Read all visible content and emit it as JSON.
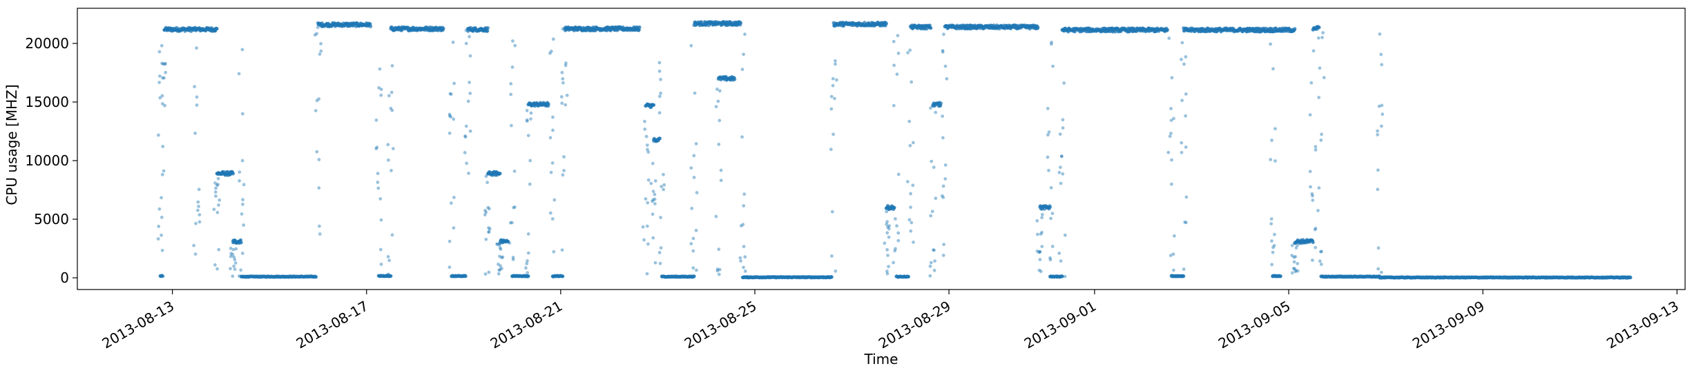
{
  "chart_data": {
    "type": "scatter",
    "title": "",
    "xlabel": "Time",
    "ylabel": "CPU usage [MHZ]",
    "xlim": [
      "2013-08-11T01:00",
      "2013-09-13T04:00"
    ],
    "ylim": [
      -1000,
      23000
    ],
    "xticks": [
      "2013-08-13",
      "2013-08-17",
      "2013-08-21",
      "2013-08-25",
      "2013-08-29",
      "2013-09-01",
      "2013-09-05",
      "2013-09-09",
      "2013-09-13"
    ],
    "yticks": [
      0,
      5000,
      10000,
      15000,
      20000
    ],
    "grid": false,
    "legend": "none",
    "color": "#1f77b4",
    "series": [
      {
        "segments": [
          {
            "start": "2013-08-12T18:00",
            "end": "2013-08-12T19:00",
            "level": 150
          },
          {
            "start": "2013-08-12T20:00",
            "end": "2013-08-13T12:00",
            "level": 21200
          },
          {
            "start": "2013-08-13T12:00",
            "end": "2013-08-13T22:00",
            "level": 21200
          },
          {
            "start": "2013-08-13T22:00",
            "end": "2013-08-14T06:00",
            "level": 8900
          },
          {
            "start": "2013-08-14T06:00",
            "end": "2013-08-14T10:00",
            "level": 3100
          },
          {
            "start": "2013-08-14T10:00",
            "end": "2013-08-15T23:00",
            "level": 100
          },
          {
            "start": "2013-08-16T00:00",
            "end": "2013-08-17T02:00",
            "level": 21600
          },
          {
            "start": "2013-08-17T06:00",
            "end": "2013-08-17T12:00",
            "level": 150
          },
          {
            "start": "2013-08-17T12:00",
            "end": "2013-08-18T14:00",
            "level": 21250
          },
          {
            "start": "2013-08-18T18:00",
            "end": "2013-08-19T01:00",
            "level": 150
          },
          {
            "start": "2013-08-19T02:00",
            "end": "2013-08-19T12:00",
            "level": 21200
          },
          {
            "start": "2013-08-19T12:00",
            "end": "2013-08-19T18:00",
            "level": 8900
          },
          {
            "start": "2013-08-19T18:00",
            "end": "2013-08-19T22:00",
            "level": 3100
          },
          {
            "start": "2013-08-20T00:00",
            "end": "2013-08-20T08:00",
            "level": 150
          },
          {
            "start": "2013-08-20T08:00",
            "end": "2013-08-20T18:00",
            "level": 14800
          },
          {
            "start": "2013-08-20T20:00",
            "end": "2013-08-21T01:00",
            "level": 150
          },
          {
            "start": "2013-08-21T02:00",
            "end": "2013-08-22T15:00",
            "level": 21250
          },
          {
            "start": "2013-08-22T18:00",
            "end": "2013-08-22T22:00",
            "level": 14700
          },
          {
            "start": "2013-08-22T22:00",
            "end": "2013-08-23T01:00",
            "level": 11800
          },
          {
            "start": "2013-08-23T02:00",
            "end": "2013-08-23T18:00",
            "level": 100
          },
          {
            "start": "2013-08-23T18:00",
            "end": "2013-08-24T17:00",
            "level": 21700
          },
          {
            "start": "2013-08-24T06:00",
            "end": "2013-08-24T14:00",
            "level": 17000
          },
          {
            "start": "2013-08-24T18:00",
            "end": "2013-08-26T14:00",
            "level": 50
          },
          {
            "start": "2013-08-26T15:00",
            "end": "2013-08-27T17:00",
            "level": 21650
          },
          {
            "start": "2013-08-27T17:00",
            "end": "2013-08-27T21:00",
            "level": 6000
          },
          {
            "start": "2013-08-27T22:00",
            "end": "2013-08-28T04:00",
            "level": 100
          },
          {
            "start": "2013-08-28T05:00",
            "end": "2013-08-28T15:00",
            "level": 21400
          },
          {
            "start": "2013-08-28T16:00",
            "end": "2013-08-28T20:00",
            "level": 14800
          },
          {
            "start": "2013-08-28T22:00",
            "end": "2013-08-30T20:00",
            "level": 21400
          },
          {
            "start": "2013-08-30T21:00",
            "end": "2013-08-31T02:00",
            "level": 6000
          },
          {
            "start": "2013-08-31T02:00",
            "end": "2013-08-31T08:00",
            "level": 100
          },
          {
            "start": "2013-08-31T08:00",
            "end": "2013-09-02T12:00",
            "level": 21150
          },
          {
            "start": "2013-09-02T14:00",
            "end": "2013-09-02T20:00",
            "level": 150
          },
          {
            "start": "2013-09-02T20:00",
            "end": "2013-09-05T03:00",
            "level": 21150
          },
          {
            "start": "2013-09-04T16:00",
            "end": "2013-09-04T20:00",
            "level": 150
          },
          {
            "start": "2013-09-05T03:00",
            "end": "2013-09-05T12:00",
            "level": 3100
          },
          {
            "start": "2013-09-05T12:00",
            "end": "2013-09-05T15:00",
            "level": 21300
          },
          {
            "start": "2013-09-05T16:00",
            "end": "2013-09-06T21:00",
            "level": 100
          },
          {
            "start": "2013-09-06T21:00",
            "end": "2013-09-12T01:00",
            "level": 30
          }
        ]
      }
    ]
  }
}
